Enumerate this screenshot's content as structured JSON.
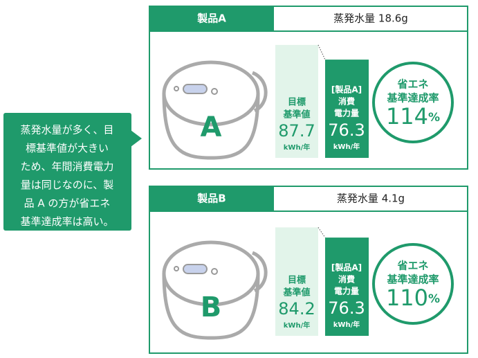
{
  "note": {
    "lines": [
      "蒸発水量が多く、目",
      "標基準値が大きい",
      "ため、年間消費電力",
      "量は同じなのに、製",
      "品 A の方が省エネ",
      "基準達成率は高い。"
    ]
  },
  "panels": [
    {
      "name": "製品A",
      "evaporation": "蒸発水量 18.6g",
      "letter": "A",
      "target": {
        "label_lines": [
          "目標",
          "基準値"
        ],
        "value": 87.7,
        "unit": "kWh/年"
      },
      "consumption": {
        "label_lines": [
          "[製品A]",
          "消費",
          "電力量"
        ],
        "value": 76.3,
        "unit": "kWh/年"
      },
      "rate": {
        "label_lines": [
          "省エネ",
          "基準達成率"
        ],
        "value": 114,
        "unit": "%"
      }
    },
    {
      "name": "製品B",
      "evaporation": "蒸発水量 4.1g",
      "letter": "B",
      "target": {
        "label_lines": [
          "目標",
          "基準値"
        ],
        "value": 84.2,
        "unit": "kWh/年"
      },
      "consumption": {
        "label_lines": [
          "[製品A]",
          "消費",
          "電力量"
        ],
        "value": 76.3,
        "unit": "kWh/年"
      },
      "rate": {
        "label_lines": [
          "省エネ",
          "基準達成率"
        ],
        "value": 110,
        "unit": "%"
      }
    }
  ]
}
